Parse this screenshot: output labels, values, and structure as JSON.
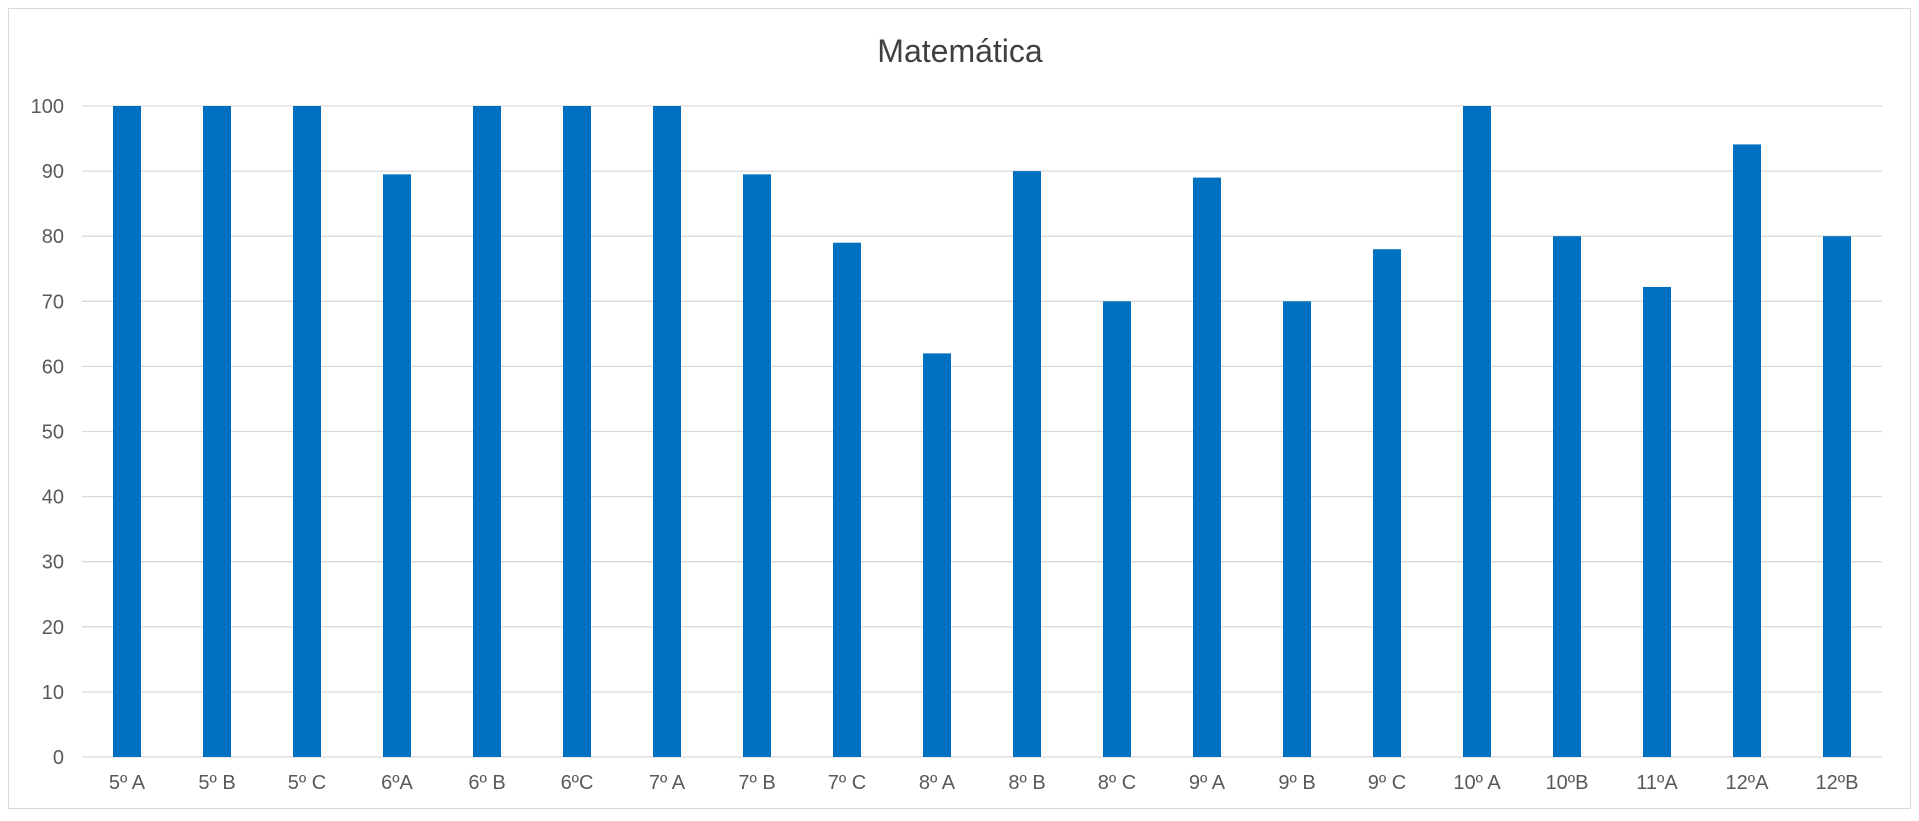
{
  "chart_data": {
    "type": "bar",
    "title": "Matemática",
    "xlabel": "",
    "ylabel": "",
    "categories": [
      "5º A",
      "5º B",
      "5º C",
      "6ºA",
      "6º B",
      "6ºC",
      "7º A",
      "7º B",
      "7º C",
      "8º A",
      "8º B",
      "8º C",
      "9º A",
      "9º B",
      "9º C",
      "10º A",
      "10ºB",
      "11ºA",
      "12ºA",
      "12ºB"
    ],
    "values": [
      100,
      100,
      100,
      89.5,
      100,
      100,
      100,
      89.5,
      79,
      62,
      90,
      70,
      89,
      70,
      78,
      100,
      80,
      72.2,
      94.1,
      80
    ],
    "ylim": [
      0,
      100
    ],
    "yticks": [
      0,
      10,
      20,
      30,
      40,
      50,
      60,
      70,
      80,
      90,
      100
    ],
    "grid": true,
    "legend": "none",
    "colors": {
      "bar": "#0070C0",
      "grid": "#D9D9D9",
      "border": "#D9D9D9"
    }
  }
}
